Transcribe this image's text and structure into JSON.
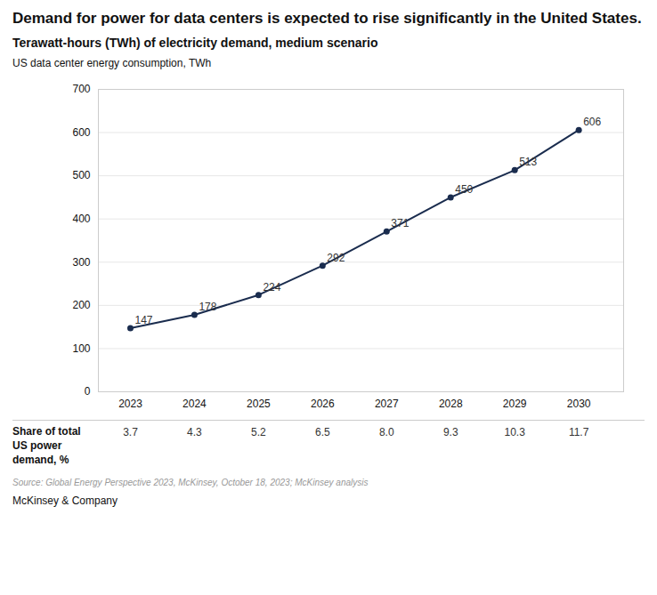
{
  "chart_data": {
    "type": "line",
    "title": "Demand for power for data centers is expected to rise significantly in the United States.",
    "subtitle": "Terawatt-hours (TWh) of electricity demand, medium scenario",
    "ylabel": "US data center energy consumption, TWh",
    "x": [
      2023,
      2024,
      2025,
      2026,
      2027,
      2028,
      2029,
      2030
    ],
    "values": [
      147,
      178,
      224,
      292,
      371,
      450,
      513,
      606
    ],
    "color": "#1a2c4e",
    "marker": "circle",
    "data_labels": true,
    "grid": true,
    "xlim": [
      2022.5,
      2030.7
    ],
    "xticks": [
      2023,
      2024,
      2025,
      2026,
      2027,
      2028,
      2029,
      2030
    ],
    "ylim": [
      0,
      700
    ],
    "yticks": [
      0,
      100,
      200,
      300,
      400,
      500,
      600,
      700
    ],
    "share": {
      "label": "Share of total\nUS power\ndemand, %",
      "values": [
        3.7,
        4.3,
        5.2,
        6.5,
        8.0,
        9.3,
        10.3,
        11.7
      ],
      "value_labels": [
        "3.7",
        "4.3",
        "5.2",
        "6.5",
        "8.0",
        "9.3",
        "10.3",
        "11.7"
      ]
    },
    "source": "Source: Global Energy Perspective 2023, McKinsey, October 18, 2023; McKinsey analysis",
    "footer": "McKinsey & Company"
  }
}
